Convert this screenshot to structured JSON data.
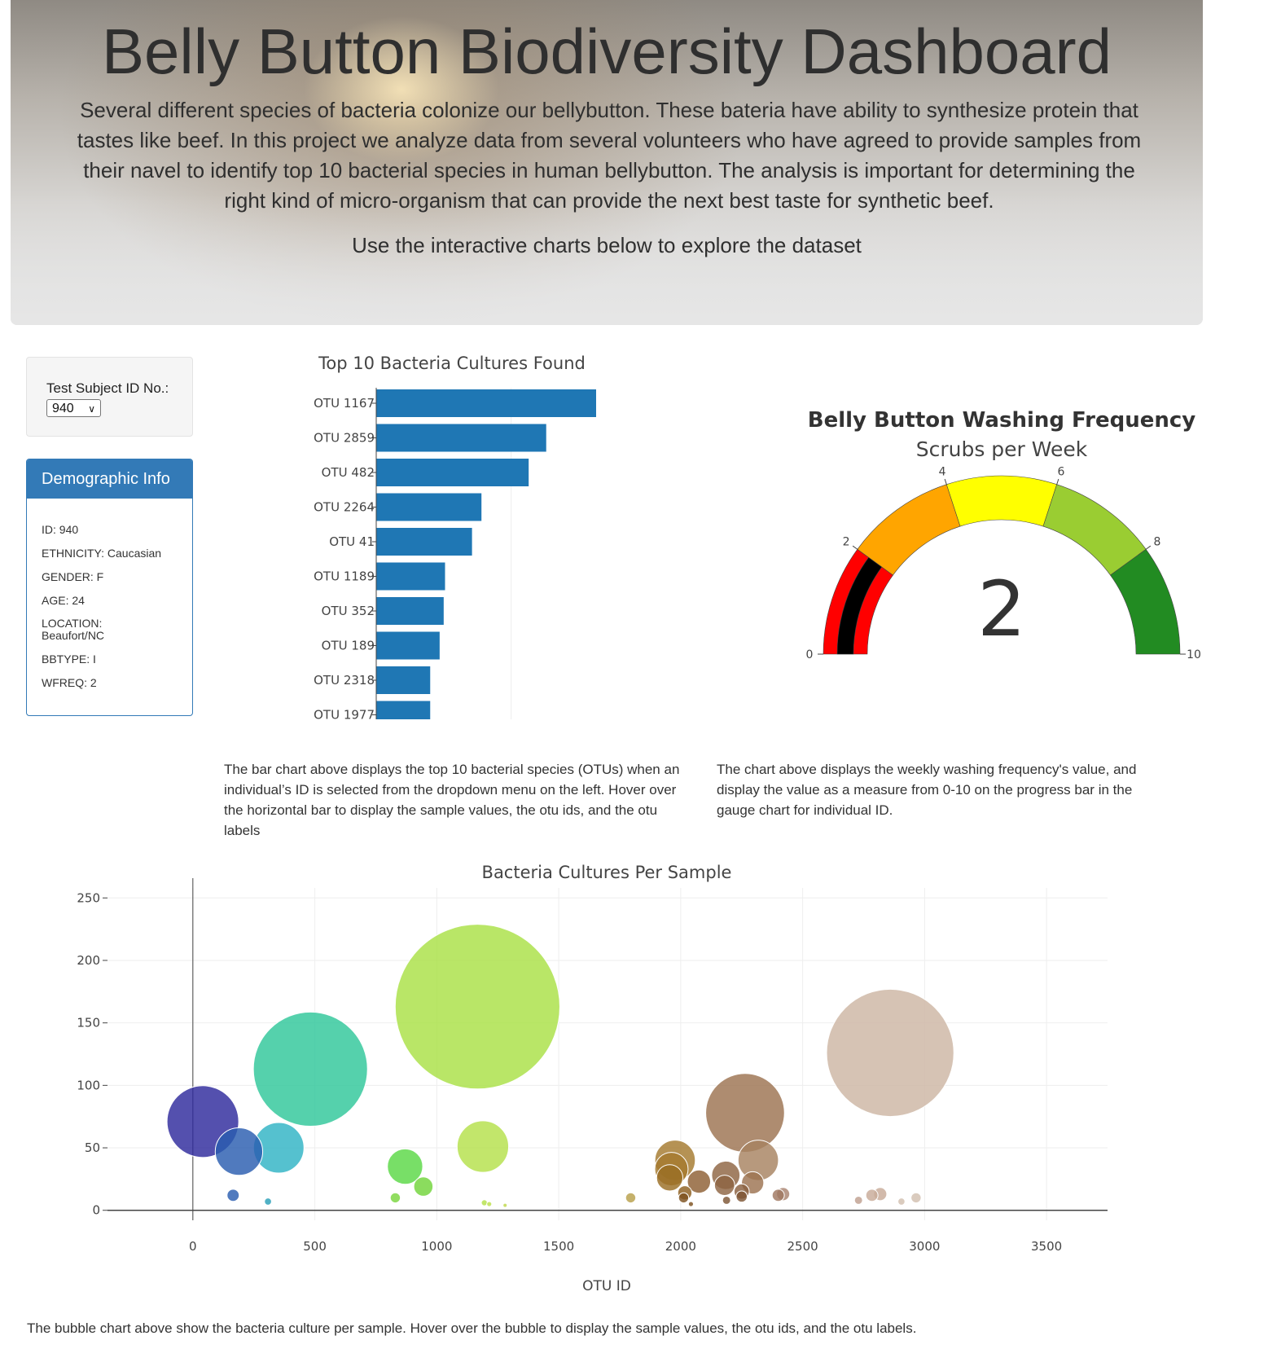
{
  "header": {
    "title": "Belly Button Biodiversity Dashboard",
    "description": "Several different species of bacteria colonize our bellybutton. These bateria have ability to synthesize protein that tastes like beef. In this project we analyze data from several volunteers who have agreed to provide samples from their navel to identify top 10 bacterial species in human bellybutton. The analysis is important for determining the right kind of micro-organism that can provide the next best taste for synthetic beef.",
    "subtitle": "Use the interactive charts below to explore the dataset"
  },
  "selector": {
    "label": "Test Subject ID No.:",
    "selected": "940"
  },
  "demographics": {
    "heading": "Demographic Info",
    "rows": [
      "ID: 940",
      "ETHNICITY: Caucasian",
      "GENDER: F",
      "AGE: 24",
      "LOCATION: Beaufort/NC",
      "BBTYPE: I",
      "WFREQ: 2"
    ]
  },
  "captions": {
    "bar": "The bar chart above displays the top 10 bacterial species (OTUs) when an individual’s ID is selected from the dropdown menu on the left. Hover over the horizontal bar to display the sample values, the otu ids, and the otu labels",
    "gauge": "The chart above displays the weekly washing frequency's value, and display the value as a measure from 0-10 on the progress bar in the gauge chart for individual ID.",
    "bubble": "The bubble chart above show the bacteria culture per sample. Hover over the bubble to display the sample values, the otu ids, and the otu labels."
  },
  "colors": {
    "bar": "#1f77b4",
    "panel": "#337ab7"
  },
  "chart_data": [
    {
      "type": "bar",
      "title": "Top 10 Bacteria Cultures Found",
      "categories": [
        "OTU 1167",
        "OTU 2859",
        "OTU 482",
        "OTU 2264",
        "OTU 41",
        "OTU 1189",
        "OTU 352",
        "OTU 189",
        "OTU 2318",
        "OTU 1977"
      ],
      "values": [
        163,
        126,
        113,
        78,
        71,
        51,
        50,
        47,
        40,
        40
      ],
      "orientation": "horizontal",
      "grid": true
    },
    {
      "type": "gauge",
      "title": "Belly Button Washing Frequency",
      "subtitle": "Scrubs per Week",
      "value": 2,
      "range": [
        0,
        10
      ],
      "ticks": [
        "0",
        "2",
        "4",
        "6",
        "8",
        "10"
      ],
      "steps": [
        {
          "range": [
            0,
            2
          ],
          "color": "#ff0000"
        },
        {
          "range": [
            2,
            4
          ],
          "color": "#ffa500"
        },
        {
          "range": [
            4,
            6
          ],
          "color": "#ffff00"
        },
        {
          "range": [
            6,
            8
          ],
          "color": "#9acd32"
        },
        {
          "range": [
            8,
            10
          ],
          "color": "#228b22"
        }
      ],
      "bar_color": "#000000"
    },
    {
      "type": "scatter",
      "title": "Bacteria Cultures Per Sample",
      "xlabel": "OTU ID",
      "ylabel": "",
      "xlim": [
        -350,
        3750
      ],
      "ylim": [
        -8,
        258
      ],
      "xticks": [
        0,
        500,
        1000,
        1500,
        2000,
        2500,
        3000,
        3500
      ],
      "yticks": [
        0,
        50,
        100,
        150,
        200,
        250
      ],
      "grid": true,
      "points": [
        {
          "x": 41,
          "y": 71,
          "color": "#2e2a9c"
        },
        {
          "x": 189,
          "y": 47,
          "color": "#2a5db0"
        },
        {
          "x": 165,
          "y": 12,
          "color": "#2a5db0"
        },
        {
          "x": 352,
          "y": 50,
          "color": "#2fb3c4"
        },
        {
          "x": 308,
          "y": 7,
          "color": "#2aa0b8"
        },
        {
          "x": 482,
          "y": 113,
          "color": "#2fc79a"
        },
        {
          "x": 870,
          "y": 35,
          "color": "#5ad845"
        },
        {
          "x": 945,
          "y": 19,
          "color": "#72d43a"
        },
        {
          "x": 830,
          "y": 10,
          "color": "#7ad63e"
        },
        {
          "x": 1167,
          "y": 163,
          "color": "#a9e046"
        },
        {
          "x": 1189,
          "y": 51,
          "color": "#b5e04a"
        },
        {
          "x": 1195,
          "y": 6,
          "color": "#b5e04a"
        },
        {
          "x": 1215,
          "y": 5,
          "color": "#bde04a"
        },
        {
          "x": 1280,
          "y": 4,
          "color": "#bfd84a"
        },
        {
          "x": 1795,
          "y": 10,
          "color": "#b8a04a"
        },
        {
          "x": 1977,
          "y": 40,
          "color": "#a57a2e"
        },
        {
          "x": 1962,
          "y": 33,
          "color": "#a57a2e"
        },
        {
          "x": 1955,
          "y": 26,
          "color": "#9a6e25"
        },
        {
          "x": 2017,
          "y": 14,
          "color": "#8e5f20"
        },
        {
          "x": 2012,
          "y": 10,
          "color": "#7e5220"
        },
        {
          "x": 2075,
          "y": 23,
          "color": "#8e5f33"
        },
        {
          "x": 2042,
          "y": 5,
          "color": "#7e5220"
        },
        {
          "x": 2185,
          "y": 28,
          "color": "#8e6442"
        },
        {
          "x": 2180,
          "y": 20,
          "color": "#8e6442"
        },
        {
          "x": 2188,
          "y": 8,
          "color": "#7e5535"
        },
        {
          "x": 2250,
          "y": 15,
          "color": "#8a6040"
        },
        {
          "x": 2250,
          "y": 11,
          "color": "#7e5535"
        },
        {
          "x": 2264,
          "y": 78,
          "color": "#9c7350"
        },
        {
          "x": 2295,
          "y": 22,
          "color": "#9c7350"
        },
        {
          "x": 2318,
          "y": 40,
          "color": "#a78360"
        },
        {
          "x": 2400,
          "y": 12,
          "color": "#a07860"
        },
        {
          "x": 2420,
          "y": 13,
          "color": "#a98470"
        },
        {
          "x": 2729,
          "y": 8,
          "color": "#c0a090"
        },
        {
          "x": 2784,
          "y": 12,
          "color": "#c8ab98"
        },
        {
          "x": 2818,
          "y": 13,
          "color": "#c8ab98"
        },
        {
          "x": 2859,
          "y": 126,
          "color": "#cdb6a3"
        },
        {
          "x": 2905,
          "y": 7,
          "color": "#d2bfb0"
        },
        {
          "x": 2965,
          "y": 10,
          "color": "#d2bfb0"
        }
      ]
    }
  ]
}
